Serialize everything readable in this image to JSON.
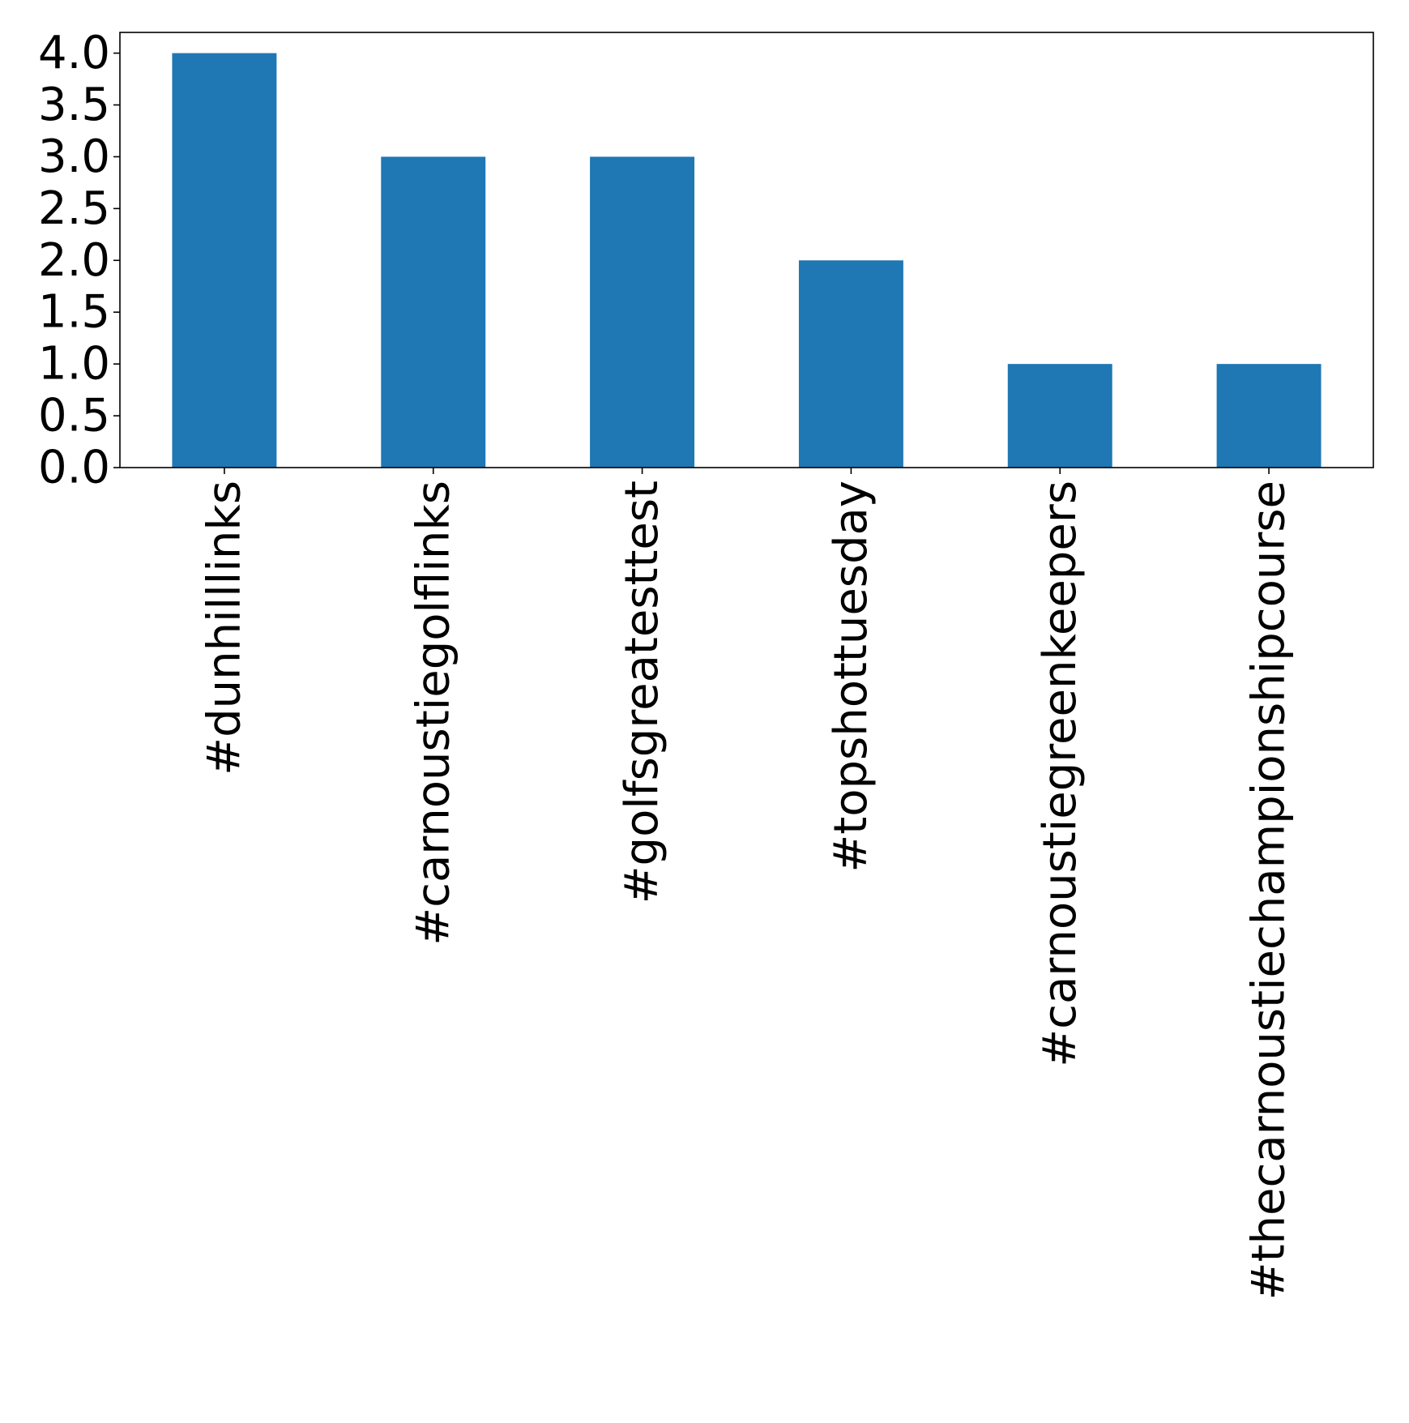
{
  "chart_data": {
    "type": "bar",
    "title": "",
    "xlabel": "",
    "ylabel": "",
    "categories": [
      "#dunhilllinks",
      "#carnoustiegolflinks",
      "#golfsgreatesttest",
      "#topshottuesday",
      "#carnoustiegreenkeepers",
      "#thecarnoustiechampionshipcourse"
    ],
    "values": [
      4,
      3,
      3,
      2,
      1,
      1
    ],
    "ylim": [
      0,
      4.2
    ],
    "yticks": [
      "0.0",
      "0.5",
      "1.0",
      "1.5",
      "2.0",
      "2.5",
      "3.0",
      "3.5",
      "4.0"
    ],
    "ytick_values": [
      0,
      0.5,
      1.0,
      1.5,
      2.0,
      2.5,
      3.0,
      3.5,
      4.0
    ],
    "bar_color": "#1f77b4",
    "grid": false,
    "legend": "none",
    "x_tick_rotation": "vertical"
  }
}
